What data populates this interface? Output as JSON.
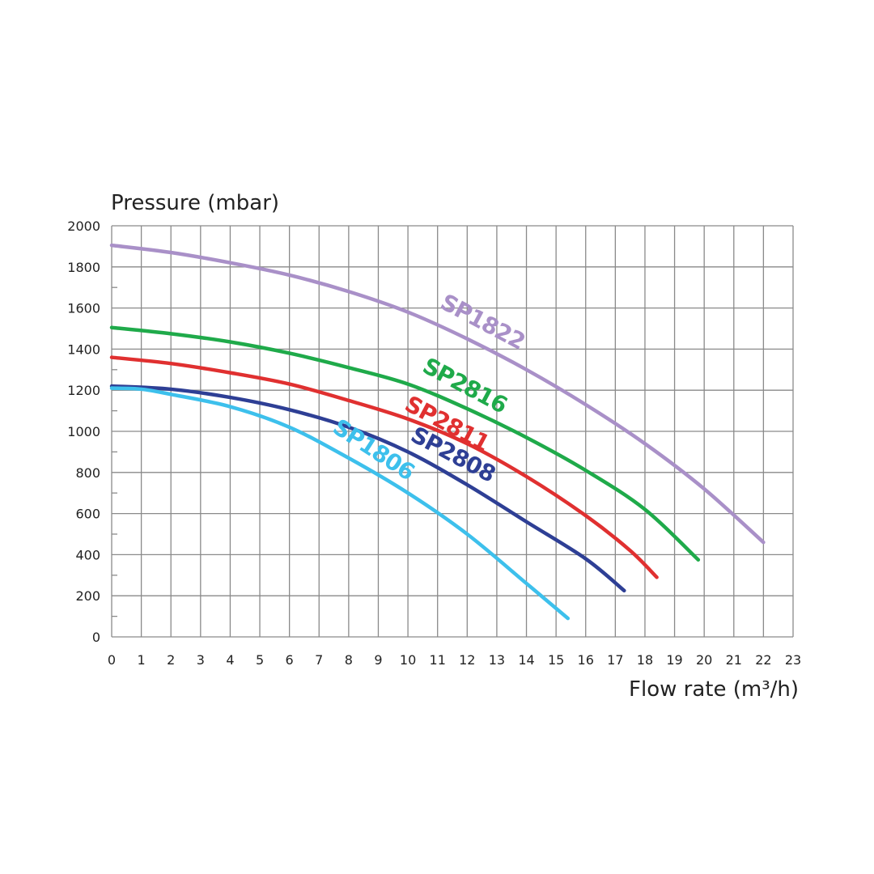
{
  "chart_data": {
    "type": "line",
    "title": "",
    "ylabel": "Pressure (mbar)",
    "xlabel": "Flow rate (m³/h)",
    "xlim": [
      0,
      23
    ],
    "ylim": [
      0,
      2000
    ],
    "x_ticks": [
      0,
      1,
      2,
      3,
      4,
      5,
      6,
      7,
      8,
      9,
      10,
      11,
      12,
      13,
      14,
      15,
      16,
      17,
      18,
      19,
      20,
      21,
      22,
      23
    ],
    "y_ticks": [
      0,
      200,
      400,
      600,
      800,
      1000,
      1200,
      1400,
      1600,
      1800,
      2000
    ],
    "grid": true,
    "series": [
      {
        "name": "SP1822",
        "color": "#a990c8",
        "label_position": [
          12.4,
          1500
        ],
        "label_angle": 28,
        "points": [
          [
            0,
            1905
          ],
          [
            2,
            1870
          ],
          [
            4,
            1820
          ],
          [
            6,
            1760
          ],
          [
            8,
            1680
          ],
          [
            10,
            1580
          ],
          [
            12,
            1450
          ],
          [
            14,
            1300
          ],
          [
            16,
            1130
          ],
          [
            18,
            940
          ],
          [
            20,
            720
          ],
          [
            22,
            460
          ]
        ]
      },
      {
        "name": "SP2816",
        "color": "#1faa4a",
        "label_position": [
          11.8,
          1190
        ],
        "label_angle": 28,
        "points": [
          [
            0,
            1505
          ],
          [
            2,
            1475
          ],
          [
            4,
            1435
          ],
          [
            6,
            1380
          ],
          [
            8,
            1310
          ],
          [
            10,
            1230
          ],
          [
            12,
            1110
          ],
          [
            14,
            970
          ],
          [
            16,
            810
          ],
          [
            18,
            620
          ],
          [
            19.8,
            375
          ]
        ]
      },
      {
        "name": "SP2811",
        "color": "#e03030",
        "label_position": [
          11.2,
          1005
        ],
        "label_angle": 28,
        "points": [
          [
            0,
            1360
          ],
          [
            2,
            1330
          ],
          [
            4,
            1285
          ],
          [
            6,
            1230
          ],
          [
            8,
            1150
          ],
          [
            10,
            1060
          ],
          [
            12,
            940
          ],
          [
            14,
            780
          ],
          [
            16,
            590
          ],
          [
            17.5,
            420
          ],
          [
            18.4,
            290
          ]
        ]
      },
      {
        "name": "SP2808",
        "color": "#2e3f95",
        "label_position": [
          11.4,
          855
        ],
        "label_angle": 28,
        "points": [
          [
            0,
            1220
          ],
          [
            2,
            1205
          ],
          [
            4,
            1165
          ],
          [
            6,
            1105
          ],
          [
            8,
            1020
          ],
          [
            10,
            900
          ],
          [
            12,
            740
          ],
          [
            14,
            560
          ],
          [
            16,
            380
          ],
          [
            17.3,
            225
          ]
        ]
      },
      {
        "name": "SP1806",
        "color": "#3dc0ec",
        "label_position": [
          8.7,
          880
        ],
        "label_angle": 33,
        "points": [
          [
            0,
            1210
          ],
          [
            1,
            1205
          ],
          [
            2,
            1180
          ],
          [
            4,
            1120
          ],
          [
            6,
            1020
          ],
          [
            8,
            870
          ],
          [
            10,
            700
          ],
          [
            12,
            500
          ],
          [
            14,
            260
          ],
          [
            15.4,
            90
          ]
        ]
      }
    ]
  }
}
